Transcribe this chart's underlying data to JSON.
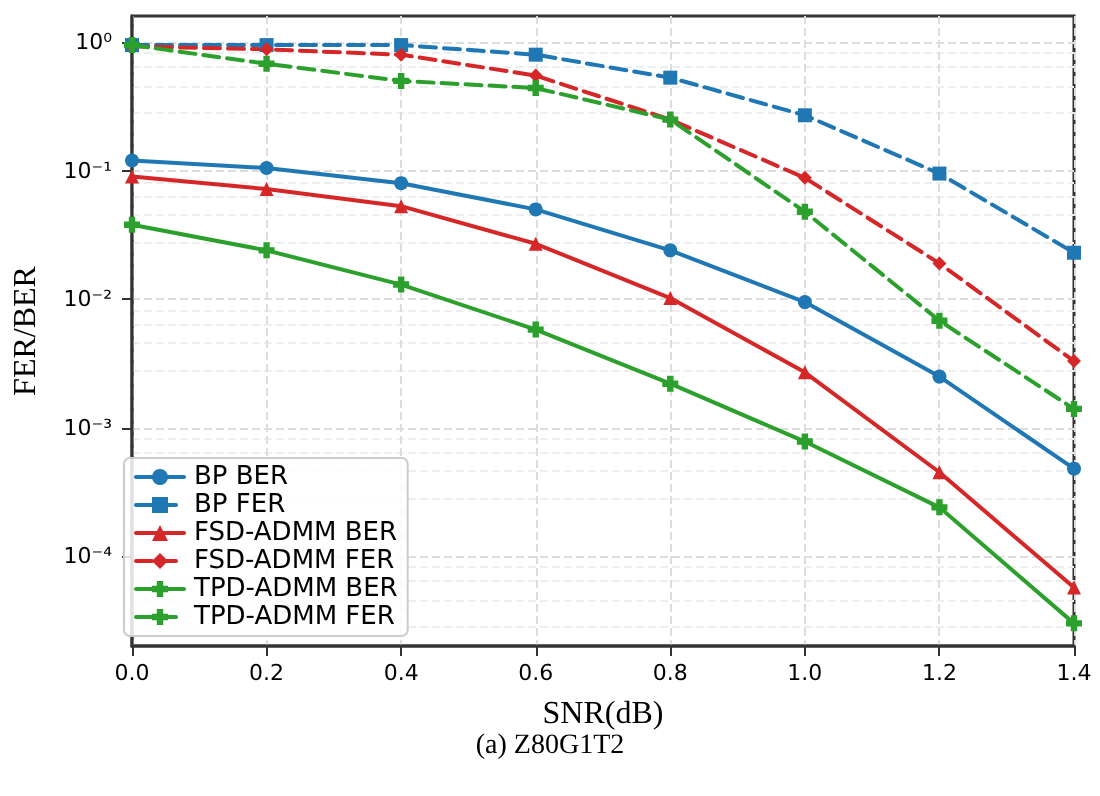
{
  "chart_data": {
    "type": "line",
    "xlabel": "SNR(dB)",
    "ylabel": "FER/BER",
    "annotations": [
      "(a) Z80G1T2"
    ],
    "x": [
      0,
      0.2,
      0.4,
      0.6,
      0.8,
      1.0,
      1.2,
      1.4
    ],
    "series": [
      {
        "name": "BP BER",
        "color": "#1f77b4",
        "line_style": "solid",
        "marker": "circle",
        "values": [
          0.12,
          0.105,
          0.08,
          0.05,
          0.024,
          0.0095,
          0.0025,
          0.00048
        ]
      },
      {
        "name": "BP FER",
        "color": "#1f77b4",
        "line_style": "dashed",
        "marker": "square",
        "values": [
          0.95,
          0.95,
          0.95,
          0.8,
          0.53,
          0.27,
          0.095,
          0.023
        ]
      },
      {
        "name": "FSD-ADMM BER",
        "color": "#d62728",
        "line_style": "solid",
        "marker": "triangle",
        "values": [
          0.09,
          0.072,
          0.053,
          0.027,
          0.0102,
          0.0027,
          0.00045,
          5.7e-05
        ]
      },
      {
        "name": "FSD-ADMM FER",
        "color": "#d62728",
        "line_style": "dashed",
        "marker": "diamond",
        "values": [
          0.93,
          0.88,
          0.8,
          0.55,
          0.25,
          0.088,
          0.019,
          0.0033
        ]
      },
      {
        "name": "TPD-ADMM BER",
        "color": "#2ca02c",
        "line_style": "solid",
        "marker": "cross",
        "values": [
          0.038,
          0.024,
          0.013,
          0.0058,
          0.0022,
          0.00078,
          0.00024,
          3e-05
        ]
      },
      {
        "name": "TPD-ADMM FER",
        "color": "#2ca02c",
        "line_style": "dashed",
        "marker": "cross",
        "values": [
          0.95,
          0.68,
          0.5,
          0.44,
          0.25,
          0.048,
          0.0068,
          0.0014
        ]
      }
    ],
    "xlim": [
      0,
      1.4
    ],
    "xticks": [
      {
        "value": 0,
        "label": "0.0"
      },
      0.2,
      0.4,
      0.6,
      0.8,
      {
        "value": 1,
        "label": "1.0"
      },
      1.2,
      1.4
    ],
    "ylim": [
      2e-05,
      1.6
    ],
    "yticks": [
      {
        "value": 0.0001,
        "label": "10⁻⁴"
      },
      {
        "value": 0.001,
        "label": "10⁻³"
      },
      {
        "value": 0.01,
        "label": "10⁻²"
      },
      {
        "value": 0.1,
        "label": "10⁻¹"
      },
      {
        "value": 1,
        "label": "10⁰"
      }
    ],
    "log": "y",
    "grid": true,
    "legend": "bottom left"
  }
}
